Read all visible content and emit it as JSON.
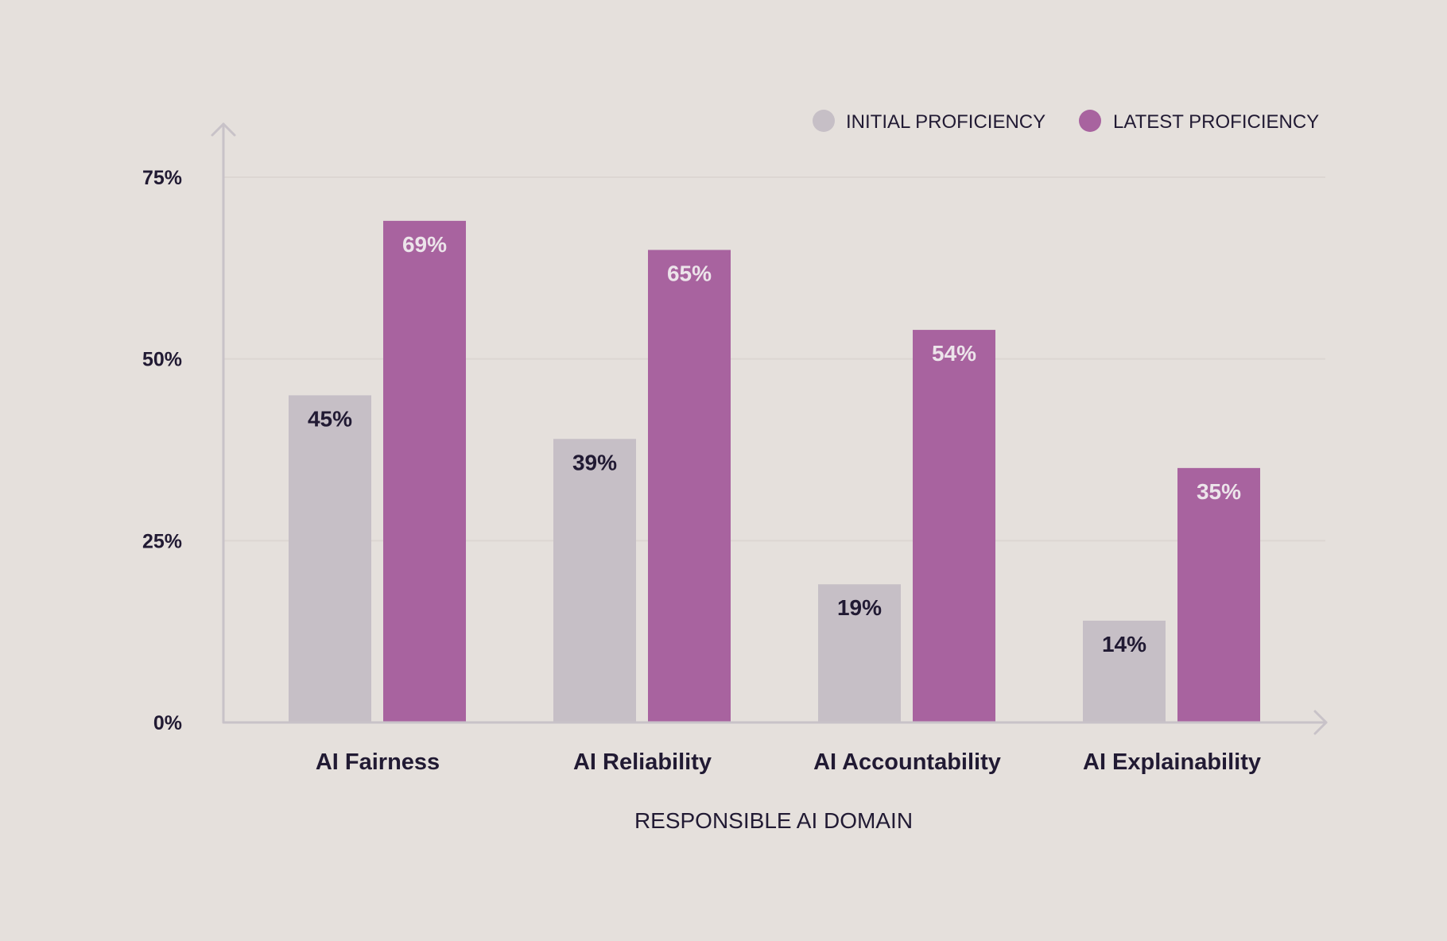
{
  "colors": {
    "background": "#e5e0dc",
    "initial": "#c6bfc6",
    "latest": "#a8639f",
    "grid": "#dcd6d2",
    "axis": "#c8c2c8",
    "text_dark": "#211a33",
    "text_light": "#ece4ea"
  },
  "chart_data": {
    "type": "bar",
    "categories": [
      "AI Fairness",
      "AI Reliability",
      "AI Accountability",
      "AI Explainability"
    ],
    "series": [
      {
        "name": "INITIAL PROFICIENCY",
        "values": [
          45,
          39,
          19,
          14
        ],
        "labels": [
          "45%",
          "39%",
          "19%",
          "14%"
        ]
      },
      {
        "name": "LATEST PROFICIENCY",
        "values": [
          69,
          65,
          54,
          35
        ],
        "labels": [
          "69%",
          "65%",
          "54%",
          "35%"
        ]
      }
    ],
    "xlabel": "RESPONSIBLE AI DOMAIN",
    "ylabel": "",
    "ylim": [
      0,
      75
    ],
    "yticks": [
      0,
      25,
      50,
      75
    ],
    "ytick_labels": [
      "0%",
      "25%",
      "50%",
      "75%"
    ],
    "grid": true,
    "legend_position": "top-right"
  }
}
